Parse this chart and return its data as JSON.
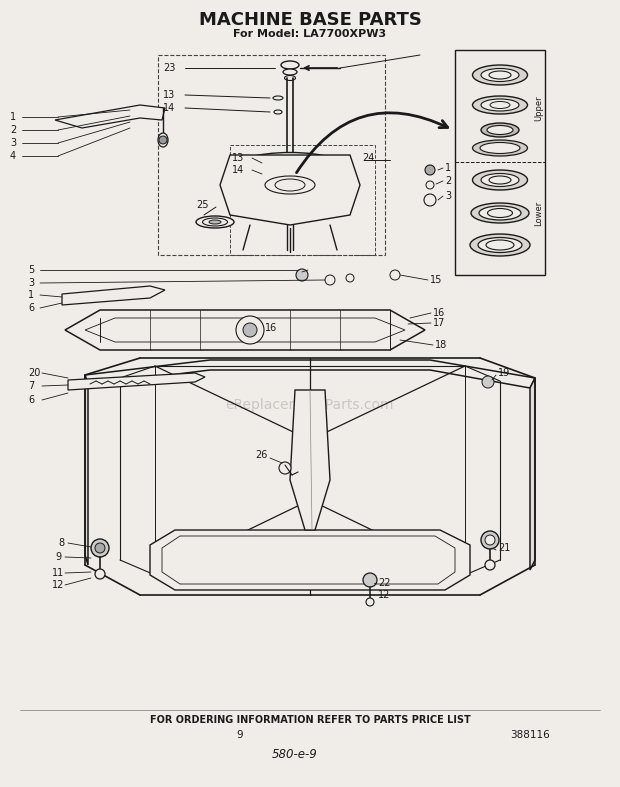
{
  "title": "MACHINE BASE PARTS",
  "subtitle": "For Model: LA7700XPW3",
  "footer_text": "FOR ORDERING INFORMATION REFER TO PARTS PRICE LIST",
  "page_number": "9",
  "part_number": "388116",
  "handwritten": "580-e-9",
  "watermark": "eReplacementParts.com",
  "bg_color": "#f0ede8",
  "title_fontsize": 13,
  "subtitle_fontsize": 8
}
